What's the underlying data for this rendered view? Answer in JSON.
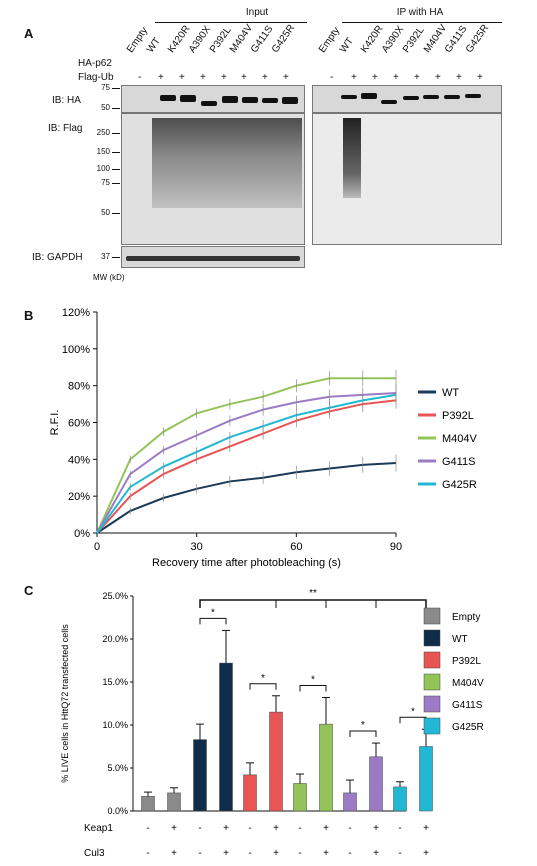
{
  "panel_a": {
    "letter": "A",
    "input_label": "Input",
    "ip_label": "IP with HA",
    "lane_labels": [
      "Empty",
      "WT",
      "K420R",
      "A390X",
      "P392L",
      "M404V",
      "G411S",
      "G425R"
    ],
    "row_ha_p62": "HA-p62",
    "row_flag_ub": "Flag-Ub",
    "flag_signs": [
      "-",
      "+",
      "+",
      "+",
      "+",
      "+",
      "+",
      "+"
    ],
    "ib_ha": "IB: HA",
    "ib_flag": "IB: Flag",
    "ib_gapdh": "IB: GAPDH",
    "mw_label": "MW (kD)",
    "mw_ha": [
      "75",
      "50"
    ],
    "mw_flag": [
      "250",
      "150",
      "100",
      "75",
      "50"
    ],
    "mw_gapdh": [
      "37"
    ]
  },
  "panel_b": {
    "letter": "B",
    "chart_data": {
      "type": "line",
      "xlabel": "Recovery time after photobleaching (s)",
      "ylabel": "R.F.I.",
      "xlim": [
        0,
        90
      ],
      "ylim": [
        0,
        120
      ],
      "xticks": [
        "0",
        "30",
        "60",
        "90"
      ],
      "yticks": [
        "0%",
        "20%",
        "40%",
        "60%",
        "80%",
        "100%",
        "120%"
      ],
      "legend_position": "right",
      "x": [
        0,
        10,
        20,
        30,
        40,
        50,
        60,
        70,
        80,
        90
      ],
      "series": [
        {
          "name": "WT",
          "color": "#1b3a57",
          "values": [
            0,
            12,
            19,
            24,
            28,
            30,
            33,
            35,
            37,
            38
          ]
        },
        {
          "name": "P392L",
          "color": "#e85555",
          "values": [
            0,
            20,
            32,
            40,
            47,
            54,
            61,
            66,
            70,
            72
          ]
        },
        {
          "name": "M404V",
          "color": "#93c45a",
          "values": [
            0,
            40,
            55,
            65,
            70,
            74,
            80,
            84,
            84,
            84
          ]
        },
        {
          "name": "G411S",
          "color": "#9b7cc4",
          "values": [
            0,
            32,
            45,
            53,
            61,
            67,
            71,
            74,
            75,
            76
          ]
        },
        {
          "name": "G425R",
          "color": "#22b8d4",
          "values": [
            0,
            25,
            36,
            44,
            52,
            58,
            64,
            68,
            72,
            75
          ]
        }
      ]
    }
  },
  "panel_c": {
    "letter": "C",
    "chart_data": {
      "type": "bar",
      "ylabel": "% LIVE cells in HttQ72 transfected cells",
      "ylim": [
        0,
        25
      ],
      "yticks": [
        "0.0%",
        "5.0%",
        "10.0%",
        "15.0%",
        "20.0%",
        "25.0%"
      ],
      "legend_position": "right",
      "keap1_label": "Keap1",
      "cul3_label": "Cul3",
      "signs": [
        "-",
        "+",
        "-",
        "+",
        "-",
        "+",
        "-",
        "+",
        "-",
        "+",
        "-",
        "+"
      ],
      "significance_pair": "*",
      "significance_bracket": "**",
      "bars": [
        {
          "group": "Empty",
          "value": 1.7,
          "error": 0.5,
          "color": "#8a8a8a"
        },
        {
          "group": "Empty",
          "value": 2.1,
          "error": 0.6,
          "color": "#8a8a8a"
        },
        {
          "group": "WT",
          "value": 8.3,
          "error": 1.8,
          "color": "#0f2d49"
        },
        {
          "group": "WT",
          "value": 17.2,
          "error": 3.8,
          "color": "#0f2d49"
        },
        {
          "group": "P392L",
          "value": 4.2,
          "error": 1.4,
          "color": "#e85555"
        },
        {
          "group": "P392L",
          "value": 11.5,
          "error": 1.9,
          "color": "#e85555"
        },
        {
          "group": "M404V",
          "value": 3.2,
          "error": 1.1,
          "color": "#93c45a"
        },
        {
          "group": "M404V",
          "value": 10.1,
          "error": 3.1,
          "color": "#93c45a"
        },
        {
          "group": "G411S",
          "value": 2.1,
          "error": 1.5,
          "color": "#9b7cc4"
        },
        {
          "group": "G411S",
          "value": 6.3,
          "error": 1.6,
          "color": "#9b7cc4"
        },
        {
          "group": "G425R",
          "value": 2.8,
          "error": 0.6,
          "color": "#22b8d4"
        },
        {
          "group": "G425R",
          "value": 7.5,
          "error": 2.0,
          "color": "#22b8d4"
        }
      ],
      "legend": [
        {
          "name": "Empty",
          "color": "#8a8a8a"
        },
        {
          "name": "WT",
          "color": "#0f2d49"
        },
        {
          "name": "P392L",
          "color": "#e85555"
        },
        {
          "name": "M404V",
          "color": "#93c45a"
        },
        {
          "name": "G411S",
          "color": "#9b7cc4"
        },
        {
          "name": "G425R",
          "color": "#22b8d4"
        }
      ]
    }
  }
}
